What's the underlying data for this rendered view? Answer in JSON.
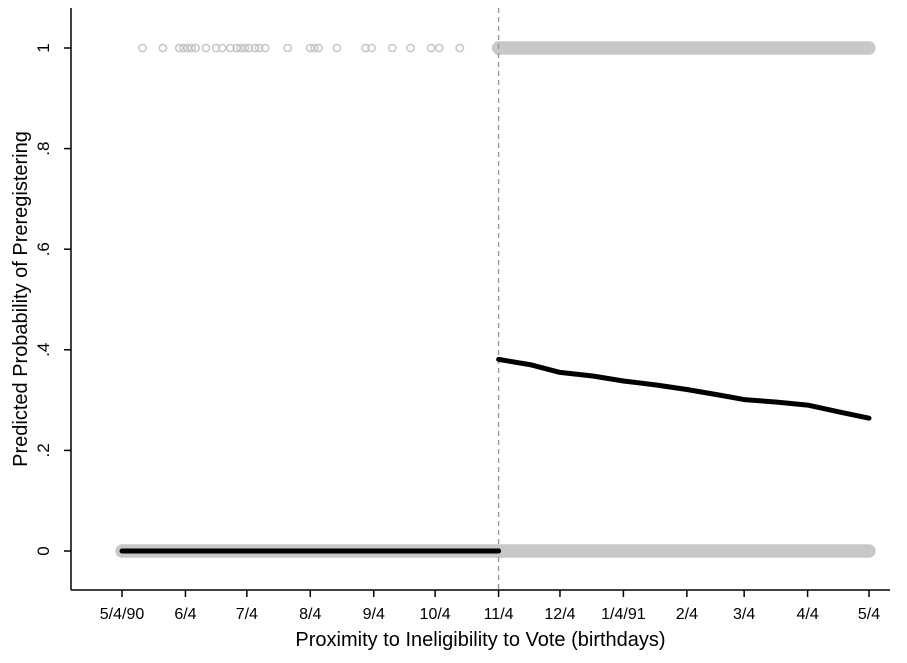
{
  "chart_data": {
    "type": "line",
    "title": "",
    "xlabel": "Proximity to Ineligibility to Vote (birthdays)",
    "ylabel": "Predicted Probability of Preregistering",
    "x_ticks": [
      "5/4/90",
      "6/4",
      "7/4",
      "8/4",
      "9/4",
      "10/4",
      "11/4",
      "12/4",
      "1/4/91",
      "2/4",
      "3/4",
      "4/4",
      "5/4"
    ],
    "x_tick_dates": [
      "1990-05-04",
      "1990-06-04",
      "1990-07-04",
      "1990-08-04",
      "1990-09-04",
      "1990-10-04",
      "1990-11-04",
      "1990-12-04",
      "1991-01-04",
      "1991-02-04",
      "1991-03-04",
      "1991-04-04",
      "1991-05-04"
    ],
    "y_ticks": [
      "0",
      ".2",
      ".4",
      ".6",
      ".8",
      "1"
    ],
    "y_tick_values": [
      0,
      0.2,
      0.4,
      0.6,
      0.8,
      1
    ],
    "xlim": [
      "1990-05-04",
      "1991-05-04"
    ],
    "ylim": [
      -0.07,
      1.08
    ],
    "grid": false,
    "legend": "none",
    "cutoff": {
      "x": "1990-11-04",
      "style": "dashed"
    },
    "colors": {
      "fit_line": "#000000",
      "observed_points": "#c8c8c8",
      "cutoff_line": "#999999"
    },
    "series": [
      {
        "kind": "fitted_line",
        "x": [
          "1990-05-04",
          "1990-11-04"
        ],
        "y": [
          0.0,
          0.0
        ]
      },
      {
        "kind": "fitted_line",
        "x": [
          "1990-11-04",
          "1990-11-20",
          "1990-12-04",
          "1990-12-20",
          "1991-01-04",
          "1991-01-20",
          "1991-02-04",
          "1991-02-20",
          "1991-03-04",
          "1991-03-20",
          "1991-04-04",
          "1991-04-20",
          "1991-05-04"
        ],
        "y": [
          0.381,
          0.37,
          0.355,
          0.348,
          0.338,
          0.33,
          0.321,
          0.31,
          0.301,
          0.296,
          0.29,
          0.276,
          0.264
        ]
      },
      {
        "kind": "observed_points",
        "y": 1,
        "x": [
          "1990-05-14",
          "1990-05-24",
          "1990-06-01",
          "1990-06-03",
          "1990-06-05",
          "1990-06-07",
          "1990-06-09",
          "1990-06-14",
          "1990-06-19",
          "1990-06-22",
          "1990-06-26",
          "1990-06-29",
          "1990-07-01",
          "1990-07-03",
          "1990-07-05",
          "1990-07-08",
          "1990-07-10",
          "1990-07-13",
          "1990-07-24",
          "1990-08-04",
          "1990-08-06",
          "1990-08-08",
          "1990-08-17",
          "1990-08-31",
          "1990-09-03",
          "1990-09-13",
          "1990-09-22",
          "1990-10-02",
          "1990-10-06",
          "1990-10-16",
          "1990-11-03",
          "1990-11-05"
        ]
      },
      {
        "kind": "observed_points_dense",
        "y": 1,
        "x_range": [
          "1990-11-04",
          "1991-05-04"
        ]
      },
      {
        "kind": "observed_points_dense",
        "y": 0,
        "x_range": [
          "1990-05-04",
          "1991-05-04"
        ]
      }
    ]
  }
}
